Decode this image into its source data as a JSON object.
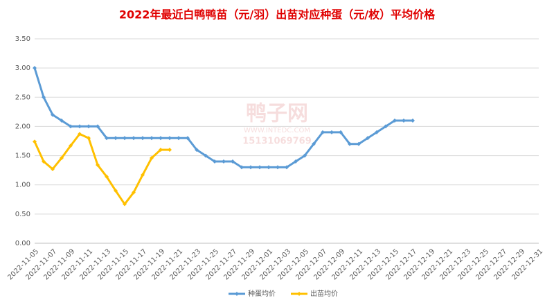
{
  "chart_data": {
    "type": "line",
    "title": "2022年最近白鸭鸭苗（元/羽）出苗对应种蛋（元/枚）平均价格",
    "watermark": [
      "鸭子网",
      "WWW.INTEDC.COM",
      "15131069769"
    ],
    "categories": [
      "2022-11-05",
      null,
      "2022-11-07",
      null,
      "2022-11-09",
      null,
      "2022-11-11",
      null,
      "2022-11-13",
      null,
      "2022-11-15",
      null,
      "2022-11-17",
      null,
      "2022-11-19",
      null,
      "2022-11-21",
      null,
      "2022-11-23",
      null,
      "2022-11-25",
      null,
      "2022-11-27",
      null,
      "2022-11-29",
      null,
      "2022-12-01",
      null,
      "2022-12-03",
      null,
      "2022-12-05",
      null,
      "2022-12-07",
      null,
      "2022-12-09",
      null,
      "2022-12-11",
      null,
      "2022-12-13",
      null,
      "2022-12-15",
      null,
      "2022-12-17",
      null,
      "2022-12-19",
      null,
      "2022-12-21",
      null,
      "2022-12-23",
      null,
      "2022-12-25",
      null,
      "2022-12-27",
      null,
      "2022-12-29",
      null,
      "2022-12-31"
    ],
    "series": [
      {
        "name": "种蛋均价",
        "color": "#5b9bd5",
        "values": [
          3.0,
          2.5,
          2.2,
          2.1,
          2.0,
          2.0,
          2.0,
          2.0,
          1.8,
          1.8,
          1.8,
          1.8,
          1.8,
          1.8,
          1.8,
          1.8,
          1.8,
          1.8,
          1.6,
          1.5,
          1.4,
          1.4,
          1.4,
          1.3,
          1.3,
          1.3,
          1.3,
          1.3,
          1.3,
          1.4,
          1.5,
          1.7,
          1.9,
          1.9,
          1.9,
          1.7,
          1.7,
          1.8,
          1.9,
          2.0,
          2.1,
          2.1,
          2.1,
          null,
          null,
          null,
          null,
          null,
          null,
          null,
          null,
          null,
          null,
          null,
          null,
          null,
          null
        ]
      },
      {
        "name": "出苗均价",
        "color": "#ffc000",
        "values": [
          1.74,
          1.4,
          1.27,
          1.46,
          1.67,
          1.87,
          1.8,
          1.34,
          1.14,
          0.9,
          0.67,
          0.87,
          1.17,
          1.46,
          1.6,
          1.6,
          null,
          null,
          null,
          null,
          null,
          null,
          null,
          null,
          null,
          null,
          null,
          null,
          null,
          null,
          null,
          null,
          null,
          null,
          null,
          null,
          null,
          null,
          null,
          null,
          null,
          null,
          null,
          null,
          null,
          null,
          null,
          null,
          null,
          null,
          null,
          null,
          null,
          null,
          null,
          null,
          null
        ]
      }
    ],
    "ylim": [
      0,
      3.5
    ],
    "yticks": [
      {
        "value": 0,
        "label": "0.00"
      },
      {
        "value": 0.5,
        "label": "0.50"
      },
      {
        "value": 1,
        "label": "1.00"
      },
      {
        "value": 1.5,
        "label": "1.50"
      },
      {
        "value": 2,
        "label": "2.00"
      },
      {
        "value": 2.5,
        "label": "2.50"
      },
      {
        "value": 3,
        "label": "3.00"
      },
      {
        "value": 3.5,
        "label": "3.50"
      }
    ],
    "grid": true,
    "legend": "bottom"
  }
}
